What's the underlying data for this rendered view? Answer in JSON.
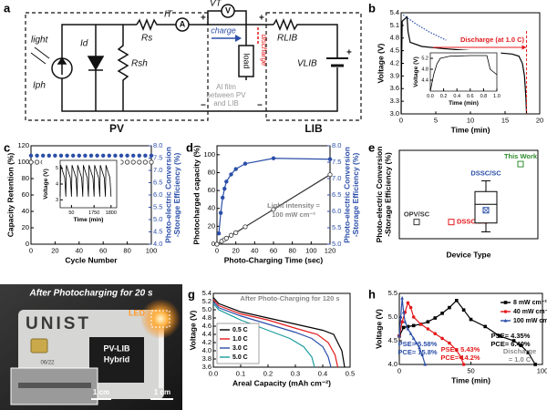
{
  "panel_labels": [
    "a",
    "b",
    "c",
    "d",
    "e",
    "f",
    "g",
    "h"
  ],
  "circuit": {
    "light": "light",
    "Iph": "Iph",
    "Id": "Id",
    "Rsh": "Rsh",
    "Rs": "Rs",
    "IT": "IT",
    "VT": "VT",
    "ammeter": "A",
    "voltmeter": "V",
    "charge": "charge",
    "discharge": "discharge",
    "load": "load",
    "RLIB": "RLIB",
    "VLIB": "VLIB",
    "film": [
      "Al film",
      "between PV",
      "and LIB"
    ],
    "PV": "PV",
    "LIB": "LIB",
    "signs": [
      "+",
      "+",
      "+",
      "−",
      "−"
    ]
  },
  "photo": {
    "caption": "After Photocharging for 20 s",
    "brand": "UNIST",
    "led": "LED",
    "device": [
      "PV-LIB",
      "Hybrid"
    ],
    "date": "06/22",
    "scale_bars": [
      "1 cm",
      "1 cm"
    ]
  },
  "chart_data": [
    {
      "type": "line",
      "xlabel": "Time (min)",
      "ylabel": "Voltage (V)",
      "xlim": [
        0,
        20
      ],
      "xticks": [
        0,
        5,
        10,
        15,
        20
      ],
      "ylim": [
        3.0,
        5.4
      ],
      "yticks": [
        {
          "value": 3.0,
          "label": "3.0"
        },
        3.3,
        3.6,
        3.9,
        4.2,
        4.5,
        4.8,
        5.1,
        5.4
      ],
      "series": [
        {
          "color": "#000000",
          "line": "solid",
          "x": [
            0,
            0.05,
            0.15,
            0.85,
            1.0,
            1.3,
            3,
            6,
            10,
            14,
            16,
            17,
            17.5,
            17.8,
            18,
            18.1
          ],
          "values": [
            3.0,
            4.0,
            5.2,
            5.3,
            4.95,
            4.7,
            4.6,
            4.55,
            4.5,
            4.45,
            4.42,
            4.37,
            4.2,
            3.9,
            3.4,
            3.0
          ]
        },
        {
          "color": "#2b4ea8",
          "line": "dotted",
          "x": [
            0.3,
            2,
            4,
            6.5
          ],
          "values": [
            5.35,
            5.15,
            4.95,
            4.75
          ]
        }
      ],
      "annotations": [
        {
          "text": "Discharge (at 1.0 C)",
          "color": "#e41a1c"
        },
        {
          "text": "Photocharge",
          "color": "#2b4ea8"
        },
        {
          "text": "(at 100 mW cm⁻²)",
          "color": "#2b4ea8"
        }
      ]
    },
    {
      "type": "line",
      "xlabel": "Time (min)",
      "ylabel": "Voltage (V)",
      "xlim": [
        0,
        1.0
      ],
      "xticks": [
        {
          "value": 0,
          "label": "0.0"
        },
        0.2,
        0.4,
        0.6,
        0.8,
        {
          "value": 1,
          "label": "1.0"
        }
      ],
      "ylim": [
        4.0,
        5.4
      ],
      "yticks": [
        4.4,
        4.8,
        5.2
      ],
      "series": [
        {
          "color": "#000000",
          "line": "solid",
          "x": [
            0,
            0.05,
            0.1,
            0.15,
            0.3,
            0.6,
            0.85,
            0.9,
            1.0
          ],
          "values": [
            4.0,
            4.6,
            5.0,
            5.2,
            5.28,
            5.3,
            5.3,
            4.8,
            4.6
          ]
        }
      ]
    },
    {
      "type": "scatter",
      "xlabel": "Cycle Number",
      "ylabel": "Capacity Retention (%)",
      "y2label": [
        "Photo-electric Conversion",
        "-Storage Efficiency (%)"
      ],
      "y2color": "#2b4ea8",
      "xlim": [
        0,
        100
      ],
      "xticks": [
        0,
        20,
        40,
        60,
        80,
        100
      ],
      "ylim": [
        0,
        120
      ],
      "yticks": [
        0,
        20,
        40,
        60,
        80,
        100,
        120
      ],
      "y2lim": [
        4,
        8
      ],
      "y2ticks": [
        {
          "value": 4,
          "label": "4.0"
        },
        4.5,
        {
          "value": 5,
          "label": "5.0"
        },
        5.5,
        {
          "value": 6,
          "label": "6.0"
        },
        6.5,
        {
          "value": 7,
          "label": "7.0"
        },
        7.5,
        {
          "value": 8,
          "label": "8.0"
        }
      ],
      "x": [
        0,
        5,
        10,
        15,
        20,
        25,
        30,
        35,
        40,
        45,
        50,
        55,
        60,
        65,
        70,
        75,
        80,
        85,
        90,
        95,
        100
      ],
      "series": [
        {
          "color": "#333333",
          "marker": "open-circle",
          "values": [
            100,
            100,
            100,
            100,
            100,
            100,
            100,
            100,
            100,
            100,
            100,
            100,
            100,
            100,
            100,
            100,
            100,
            100,
            100,
            100,
            100
          ]
        },
        {
          "color": "#2b4ea8",
          "marker": "circle",
          "axis": "y2",
          "values": [
            7.6,
            7.6,
            7.6,
            7.6,
            7.6,
            7.6,
            7.6,
            7.6,
            7.6,
            7.6,
            7.6,
            7.6,
            7.6,
            7.6,
            7.6,
            7.6,
            7.6,
            7.6,
            7.6,
            7.6,
            7.6
          ]
        }
      ]
    },
    {
      "type": "line",
      "xlabel": "Time (min)",
      "ylabel": "Voltage (V)",
      "xlim": [
        0,
        10
      ],
      "xticks": [
        {
          "value": 2,
          "label": "50"
        },
        {
          "value": 6,
          "label": "1750"
        },
        {
          "value": 9,
          "label": "1800"
        }
      ],
      "ylim": [
        2.5,
        5.5
      ],
      "yticks": [
        3,
        4,
        5
      ],
      "series": [
        {
          "color": "#000000",
          "line": "solid",
          "x": [
            0,
            0.1,
            0.8,
            1,
            1.1,
            1.8,
            2,
            2.1,
            2.8,
            3,
            3.1,
            3.8,
            4,
            4.1,
            4.8,
            5,
            5.1,
            5.8,
            6,
            6.1,
            6.8,
            7,
            7.1,
            7.8,
            8,
            8.1,
            8.8,
            9
          ],
          "values": [
            3.2,
            5.2,
            4.4,
            3.2,
            5.2,
            4.4,
            3.2,
            5.2,
            4.4,
            3.2,
            5.2,
            4.4,
            3.2,
            5.2,
            4.4,
            3.2,
            5.2,
            4.4,
            3.2,
            5.2,
            4.4,
            3.2,
            5.2,
            4.4,
            3.2,
            5.2,
            4.4,
            3.2
          ]
        }
      ]
    },
    {
      "type": "line",
      "xlabel": "Photo-Charging Time (sec)",
      "ylabel": "Photocharged capacity (%)",
      "y2label": [
        "Photo-electric Conversion",
        "-Storage Efficiency (%)"
      ],
      "y2color": "#2b4ea8",
      "xlim": [
        0,
        120
      ],
      "xticks": [
        0,
        20,
        40,
        60,
        80,
        100,
        120
      ],
      "ylim": [
        0,
        110
      ],
      "yticks": [
        0,
        20,
        40,
        60,
        80,
        100
      ],
      "y2lim": [
        5,
        8
      ],
      "y2ticks": [
        {
          "value": 5,
          "label": "5.0"
        },
        5.5,
        {
          "value": 6,
          "label": "6.0"
        },
        6.5,
        {
          "value": 7,
          "label": "7.0"
        },
        7.5,
        {
          "value": 8,
          "label": "8.0"
        }
      ],
      "series": [
        {
          "color": "#2b4ea8",
          "line": "solid",
          "marker": "circle",
          "x": [
            2,
            4,
            6,
            8,
            10,
            15,
            20,
            30,
            60,
            120
          ],
          "values": [
            12,
            35,
            52,
            62,
            70,
            78,
            84,
            90,
            96,
            95
          ]
        },
        {
          "color": "#333333",
          "line": "solid",
          "marker": "open-circle",
          "axis": "y2",
          "x": [
            0,
            5,
            8,
            10,
            15,
            20,
            30,
            60,
            120
          ],
          "values": [
            5.0,
            5.09,
            5.14,
            5.18,
            5.27,
            5.35,
            5.53,
            6.06,
            7.12
          ]
        }
      ],
      "annotations": [
        {
          "text": "Light intensity =",
          "color": "#888888"
        },
        {
          "text": "100 mW cm⁻²",
          "color": "#888888"
        }
      ]
    },
    {
      "type": "box",
      "xlabel": "Device Type",
      "ylabel": [
        "Photo-electric Conversion",
        "-Storage Efficiency (%)"
      ],
      "categories": [
        "OPV/SC",
        "DSSC/LIB",
        "DSSC/SC",
        "This Work"
      ],
      "colors": [
        "#333333",
        "#e41a1c",
        "#2b4ea8",
        "#2e8b2e"
      ],
      "ylim": [
        0,
        9
      ],
      "values": [
        1.7,
        1.7,
        2.9,
        7.6
      ],
      "boxes": [
        null,
        null,
        {
          "min": 0.7,
          "q1": 1.6,
          "median": 3.5,
          "q3": 4.8,
          "max": 5.9
        },
        null
      ]
    },
    {
      "type": "line",
      "xlabel": "Areal Capacity (mAh cm⁻²)",
      "ylabel": "Voltage (V)",
      "legend": "lower left",
      "xlim": [
        0,
        0.5
      ],
      "xticks": [
        {
          "value": 0,
          "label": "0.0"
        },
        0.1,
        0.2,
        0.3,
        0.4,
        0.5
      ],
      "ylim": [
        3.6,
        5.4
      ],
      "yticks": [
        3.6,
        3.8,
        {
          "value": 4,
          "label": "4.0"
        },
        4.2,
        4.4,
        4.6,
        4.8,
        {
          "value": 5,
          "label": "5.0"
        },
        5.2,
        5.4
      ],
      "series": [
        {
          "name": "0.5 C",
          "color": "#000000",
          "line": "solid",
          "x": [
            0,
            0.02,
            0.1,
            0.2,
            0.3,
            0.4,
            0.44,
            0.47,
            0.48
          ],
          "values": [
            5.3,
            5.15,
            4.95,
            4.8,
            4.65,
            4.5,
            4.4,
            4.0,
            3.6
          ]
        },
        {
          "name": "1.0 C",
          "color": "#e41a1c",
          "line": "solid",
          "x": [
            0,
            0.02,
            0.1,
            0.2,
            0.3,
            0.38,
            0.42,
            0.445,
            0.455
          ],
          "values": [
            5.25,
            5.1,
            4.9,
            4.75,
            4.55,
            4.4,
            4.2,
            3.9,
            3.6
          ]
        },
        {
          "name": "3.0 C",
          "color": "#2b4ea8",
          "line": "solid",
          "x": [
            0,
            0.02,
            0.1,
            0.2,
            0.3,
            0.36,
            0.4,
            0.42,
            0.43
          ],
          "values": [
            5.2,
            5.05,
            4.85,
            4.65,
            4.45,
            4.3,
            4.1,
            3.85,
            3.6
          ]
        },
        {
          "name": "5.0 C",
          "color": "#1a9c9c",
          "line": "solid",
          "x": [
            0,
            0.02,
            0.1,
            0.2,
            0.28,
            0.33,
            0.36,
            0.37
          ],
          "values": [
            5.15,
            5.0,
            4.75,
            4.5,
            4.3,
            4.1,
            3.85,
            3.6
          ]
        }
      ],
      "annotations": [
        {
          "text": "After Photo-Charging for 120 s",
          "color": "#888888"
        }
      ]
    },
    {
      "type": "line",
      "xlabel": "Time (min)",
      "ylabel": "Voltage (V)",
      "legend": "upper right",
      "xlim": [
        0,
        100
      ],
      "xticks": [
        0,
        50,
        100
      ],
      "ylim": [
        4.0,
        5.5
      ],
      "yticks": [
        {
          "value": 4,
          "label": "4.0"
        },
        4.5,
        {
          "value": 5,
          "label": "5.0"
        },
        5.5
      ],
      "series": [
        {
          "name": "8 mW cm⁻²",
          "color": "#000000",
          "line": "solid",
          "marker": "square",
          "x": [
            0,
            3,
            6,
            10,
            15,
            20,
            25,
            30,
            35,
            40,
            45,
            50,
            60,
            70,
            80,
            85,
            90,
            95
          ],
          "values": [
            4.6,
            4.78,
            4.8,
            4.82,
            4.85,
            4.9,
            4.98,
            5.08,
            5.2,
            5.35,
            5.15,
            4.95,
            4.8,
            4.6,
            4.5,
            4.4,
            4.25,
            4.0
          ]
        },
        {
          "name": "40 mW cm⁻²",
          "color": "#e41a1c",
          "line": "solid",
          "marker": "circle",
          "x": [
            0,
            2,
            4,
            6,
            8,
            10,
            15,
            20,
            25,
            30,
            35,
            40,
            43,
            45
          ],
          "values": [
            4.6,
            4.9,
            5.1,
            5.3,
            5.2,
            5.0,
            4.85,
            4.75,
            4.65,
            4.55,
            4.45,
            4.3,
            4.15,
            4.0
          ]
        },
        {
          "name": "100 mW cm⁻²",
          "color": "#2b4ea8",
          "line": "solid",
          "marker": "triangle",
          "x": [
            0,
            1,
            2,
            3,
            4,
            6,
            8,
            10,
            12,
            14,
            16,
            18
          ],
          "values": [
            4.6,
            5.0,
            5.4,
            5.1,
            4.9,
            4.75,
            4.65,
            4.55,
            4.45,
            4.35,
            4.2,
            4.0
          ]
        }
      ],
      "annotations": [
        {
          "text": "PSE= 4.35%",
          "color": "#000000"
        },
        {
          "text": "PCE= 6.40%",
          "color": "#000000"
        },
        {
          "text": "PSE= 5.43%",
          "color": "#e41a1c"
        },
        {
          "text": "PCE= 14.2%",
          "color": "#e41a1c"
        },
        {
          "text": "PSE= 5.58%",
          "color": "#2b4ea8"
        },
        {
          "text": "PCE= 15.8%",
          "color": "#2b4ea8"
        },
        {
          "text": "Discharge",
          "color": "#888888"
        },
        {
          "text": "= 1.0 C",
          "color": "#888888"
        }
      ]
    }
  ]
}
